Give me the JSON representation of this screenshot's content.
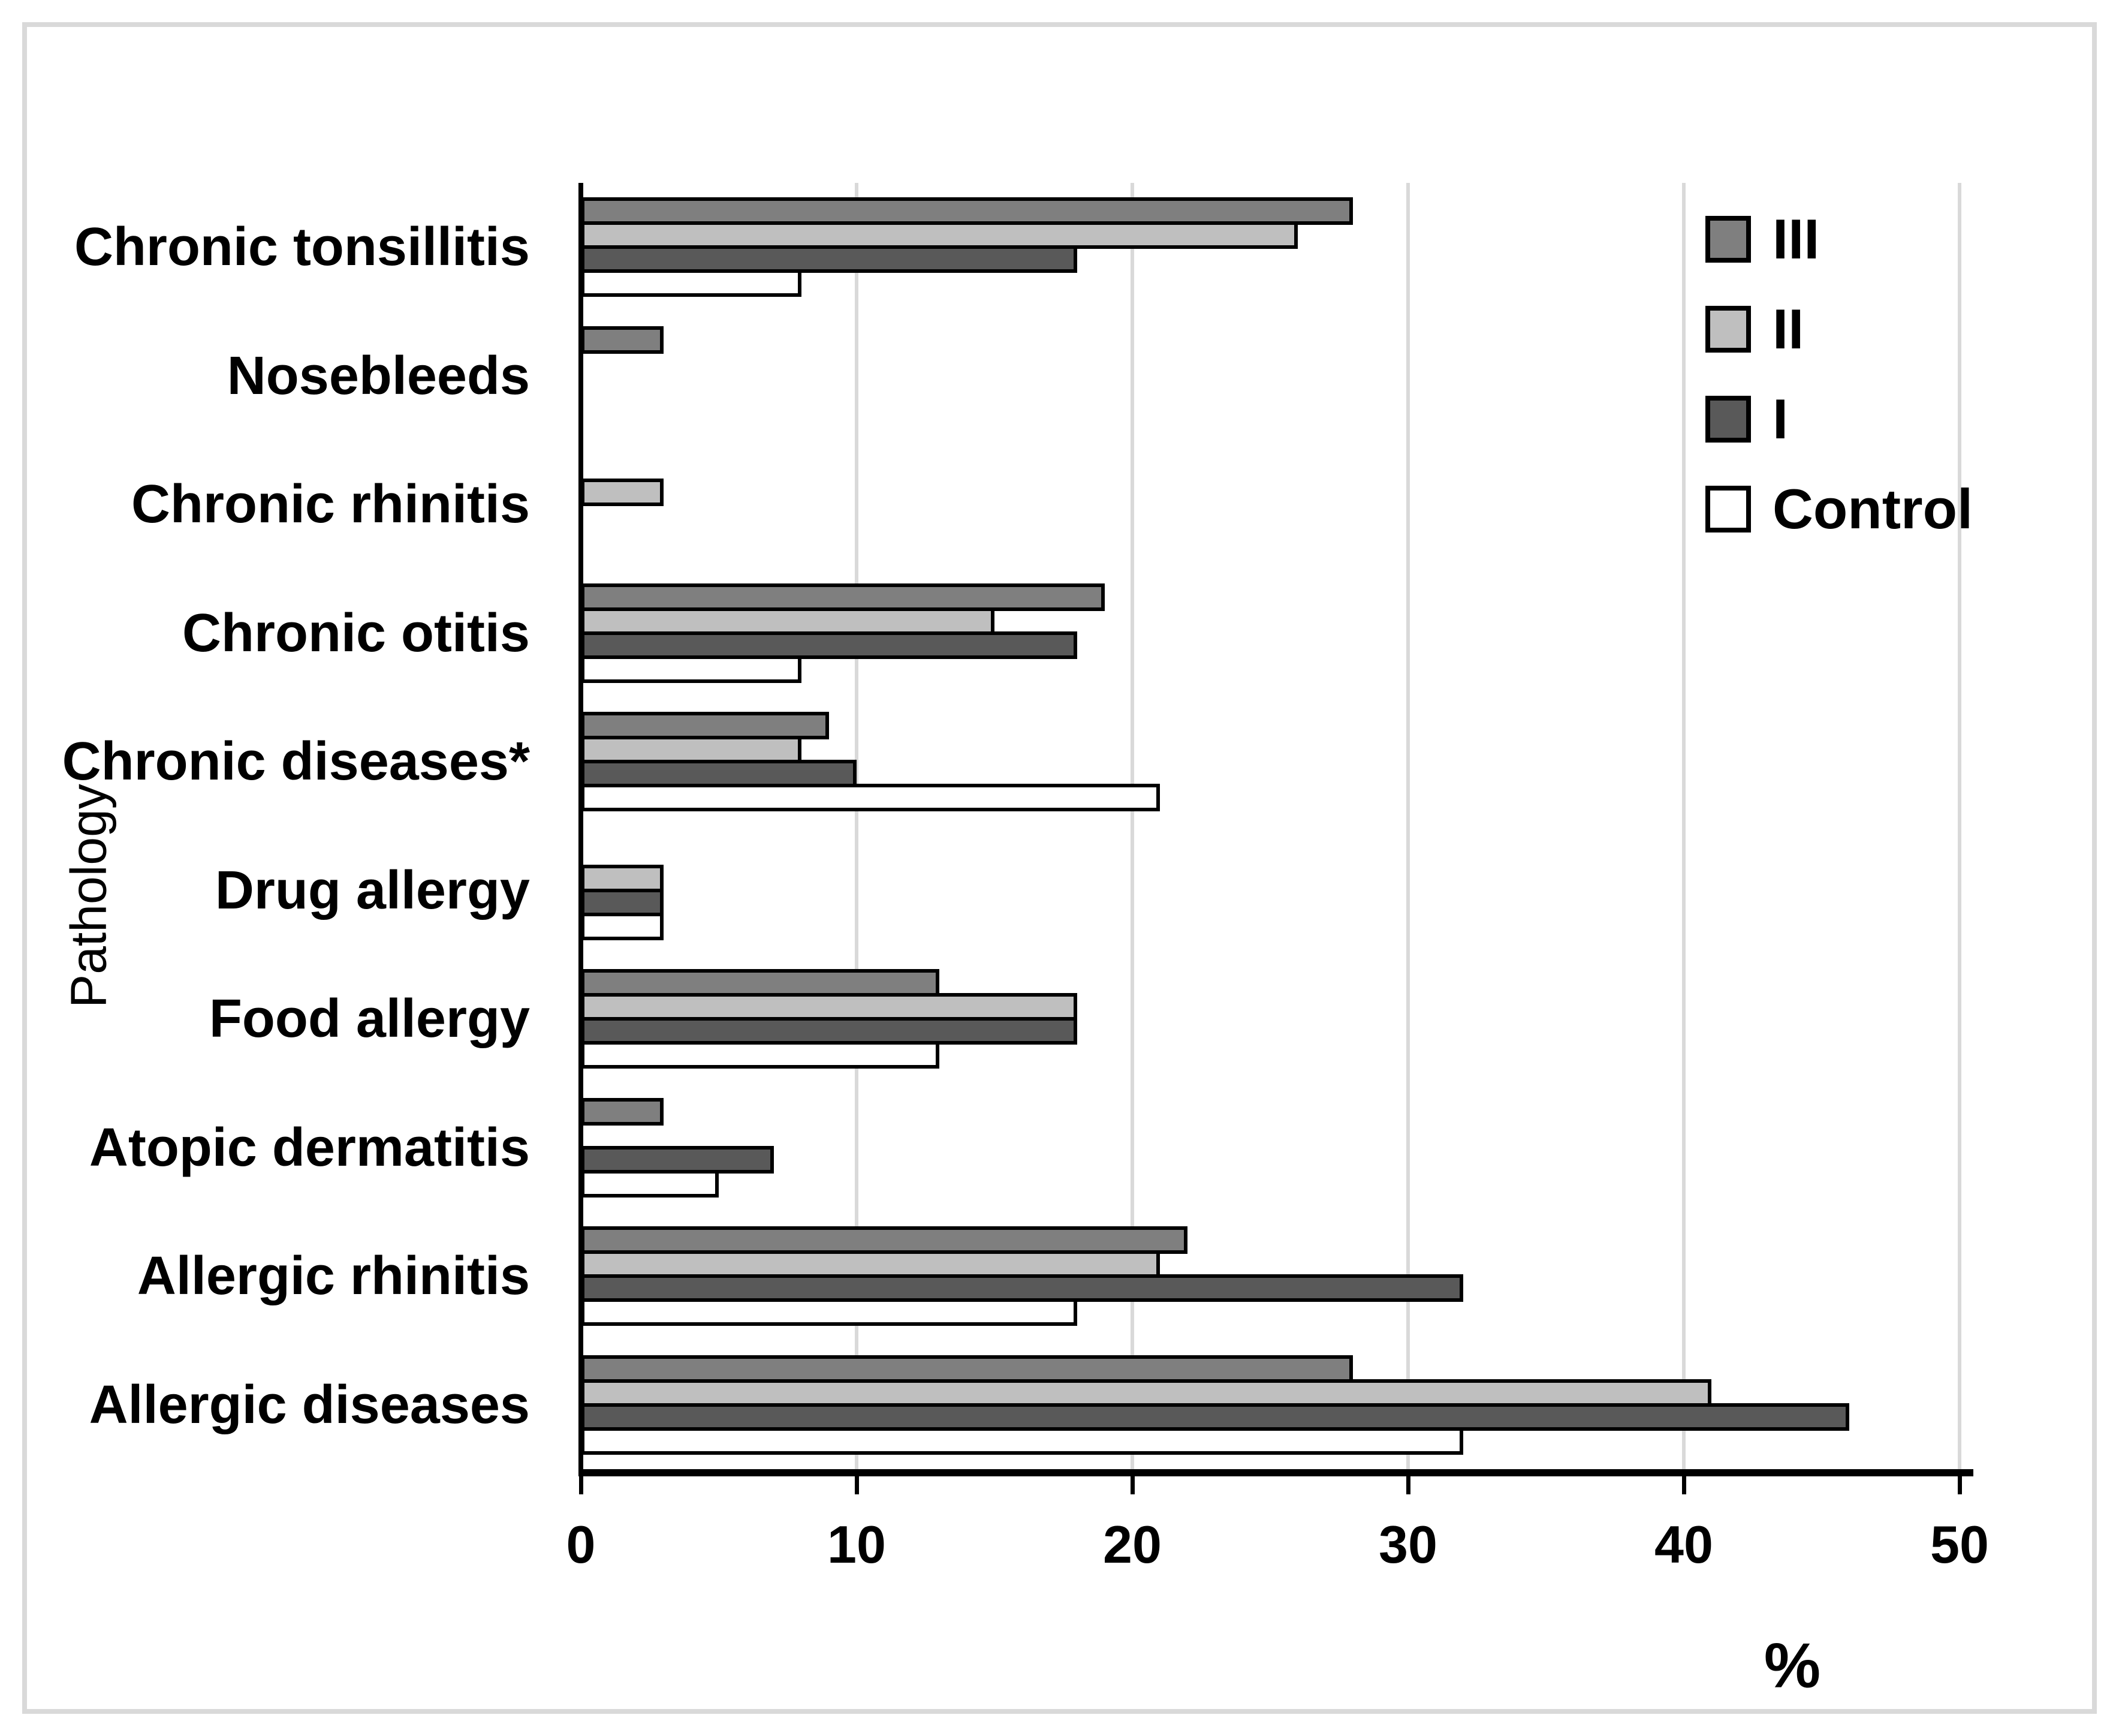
{
  "figure": {
    "background": "#ffffff",
    "frame_color": "#d9d9d9",
    "axis_color": "#000000",
    "gridline_color": "#d9d9d9"
  },
  "legend": {
    "position": "top-right",
    "entries": [
      {
        "label": "III",
        "color": "#7f7f7f"
      },
      {
        "label": "II",
        "color": "#bfbfbf"
      },
      {
        "label": "I",
        "color": "#595959"
      },
      {
        "label": "Control",
        "color": "#ffffff"
      }
    ]
  },
  "chart_data": {
    "type": "bar",
    "orientation": "horizontal",
    "title": "",
    "xlabel": "%",
    "ylabel": "Pathology",
    "xlim": [
      0,
      50
    ],
    "x_ticks": [
      0,
      10,
      20,
      30,
      40,
      50
    ],
    "grid": true,
    "bar_order_top_to_bottom": [
      "III",
      "II",
      "I",
      "Control"
    ],
    "categories": [
      "Chronic tonsillitis",
      "Nosebleeds",
      "Chronic rhinitis",
      "Chronic otitis",
      "Chronic diseases*",
      "Drug allergy",
      "Food allergy",
      "Atopic dermatitis",
      "Allergic rhinitis",
      "Allergic diseases"
    ],
    "series": [
      {
        "name": "III",
        "color": "#7f7f7f",
        "values": [
          28,
          3,
          0,
          19,
          9,
          0,
          13,
          3,
          22,
          28
        ]
      },
      {
        "name": "II",
        "color": "#bfbfbf",
        "values": [
          26,
          0,
          3,
          15,
          8,
          3,
          18,
          0,
          21,
          41
        ]
      },
      {
        "name": "I",
        "color": "#595959",
        "values": [
          18,
          0,
          0,
          18,
          10,
          3,
          18,
          7,
          32,
          46
        ]
      },
      {
        "name": "Control",
        "color": "#ffffff",
        "values": [
          8,
          0,
          0,
          8,
          21,
          3,
          13,
          5,
          18,
          32
        ]
      }
    ]
  }
}
